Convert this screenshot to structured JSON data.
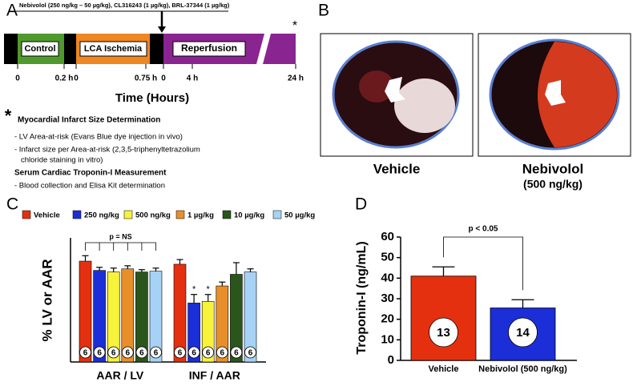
{
  "panels": {
    "a": {
      "label": "A",
      "drugs": "Nebivolol (250 ng/kg – 50 µg/kg), CL316243 (1 µg/kg), BRL-37344 (1 µg/kg)",
      "phases": [
        "Control",
        "LCA Ischemia",
        "Reperfusion"
      ],
      "time_ticks": [
        "0",
        "0.2 h",
        "0",
        "0.75 h",
        "0",
        "4 h",
        "24 h"
      ],
      "end_mark": "*",
      "axis_title": "Time (Hours)",
      "note_mark": "*",
      "heading1": "Myocardial Infarct Size Determination",
      "items1": [
        "- LV Area-at-risk (Evans Blue dye injection in vivo)",
        "- Infarct size per Area-at-risk (2,3,5-triphenyltetrazolium",
        "chloride staining in vitro)"
      ],
      "heading2": "Serum Cardiac Troponin-I Measurement",
      "items2": [
        "- Blood collection and Elisa Kit determination"
      ]
    },
    "b": {
      "label": "B",
      "captions": [
        "Vehicle",
        "Nebivolol",
        "(500 ng/kg)"
      ]
    }
  },
  "chart_data": [
    {
      "type": "bar",
      "panel": "C",
      "ylabel": "% LV or AAR",
      "categories": [
        "AAR / LV",
        "INF / AAR"
      ],
      "ylim": [
        0,
        80
      ],
      "annotations": {
        "group": "p = NS",
        "sig": "*"
      },
      "series": [
        {
          "name": "Vehicle",
          "color": "#e5300f",
          "values": [
            65,
            63
          ],
          "errors": [
            3.5,
            3
          ],
          "n": [
            6,
            6
          ]
        },
        {
          "name": "250 ng/kg",
          "color": "#1c2ed8",
          "values": [
            59,
            38
          ],
          "errors": [
            2,
            5.5
          ],
          "n": [
            6,
            6
          ]
        },
        {
          "name": "500 ng/kg",
          "color": "#f7f23a",
          "values": [
            58,
            39
          ],
          "errors": [
            2.5,
            4.5
          ],
          "n": [
            6,
            6
          ]
        },
        {
          "name": "1 µg/kg",
          "color": "#e98f2a",
          "values": [
            60,
            49
          ],
          "errors": [
            2,
            2.5
          ],
          "n": [
            6,
            6
          ]
        },
        {
          "name": "10 µg/kg",
          "color": "#2b561b",
          "values": [
            58,
            56.5
          ],
          "errors": [
            1.5,
            7.5
          ],
          "n": [
            6,
            6
          ]
        },
        {
          "name": "50 µg/kg",
          "color": "#a6d3f5",
          "values": [
            58.5,
            58
          ],
          "errors": [
            2,
            2
          ],
          "n": [
            6,
            6
          ]
        }
      ]
    },
    {
      "type": "bar",
      "panel": "D",
      "ylabel": "Troponin-I (ng/mL)",
      "categories": [
        "Vehicle",
        "Nebivolol (500 ng/kg)"
      ],
      "values": [
        41,
        25.5
      ],
      "errors": [
        4.5,
        4
      ],
      "n": [
        13,
        14
      ],
      "colors": [
        "#e5300f",
        "#1c2ed8"
      ],
      "ylim": [
        0,
        60
      ],
      "yticks": [
        0,
        10,
        20,
        30,
        40,
        50,
        60
      ],
      "annotation": "p < 0.05"
    }
  ]
}
